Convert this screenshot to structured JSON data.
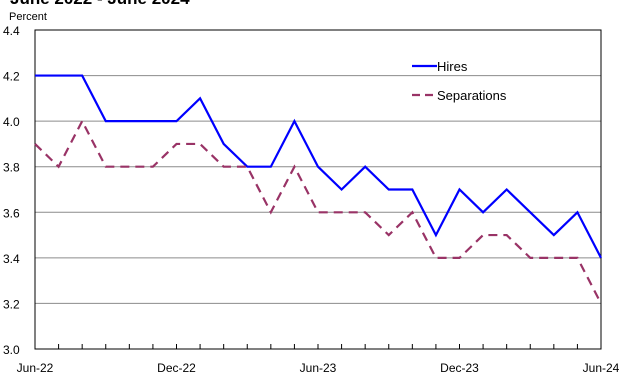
{
  "chart_data": {
    "type": "line",
    "title": "June 2022 - June 2024",
    "ylabel": "Percent",
    "xlabel": "",
    "ylim": [
      3.0,
      4.4
    ],
    "yticks": [
      "4.4",
      "4.2",
      "4.0",
      "3.8",
      "3.6",
      "3.4",
      "3.2",
      "3.0"
    ],
    "ytick_values": [
      4.4,
      4.2,
      4.0,
      3.8,
      3.6,
      3.4,
      3.2,
      3.0
    ],
    "x": [
      "2022-06",
      "2022-07",
      "2022-08",
      "2022-09",
      "2022-10",
      "2022-11",
      "2022-12",
      "2023-01",
      "2023-02",
      "2023-03",
      "2023-04",
      "2023-05",
      "2023-06",
      "2023-07",
      "2023-08",
      "2023-09",
      "2023-10",
      "2023-11",
      "2023-12",
      "2024-01",
      "2024-02",
      "2024-03",
      "2024-04",
      "2024-05",
      "2024-06"
    ],
    "xtick_labels": [
      {
        "index": 0,
        "label": "Jun-22"
      },
      {
        "index": 6,
        "label": "Dec-22"
      },
      {
        "index": 12,
        "label": "Jun-23"
      },
      {
        "index": 18,
        "label": "Dec-23"
      },
      {
        "index": 24,
        "label": "Jun-24"
      }
    ],
    "grid": true,
    "legend_position": "top-right",
    "series": [
      {
        "name": "Hires",
        "color": "#0000ff",
        "style": "solid",
        "values": [
          4.2,
          4.2,
          4.2,
          4.0,
          4.0,
          4.0,
          4.0,
          4.1,
          3.9,
          3.8,
          3.8,
          4.0,
          3.8,
          3.7,
          3.8,
          3.7,
          3.7,
          3.5,
          3.7,
          3.6,
          3.7,
          3.6,
          3.5,
          3.6,
          3.4
        ]
      },
      {
        "name": "Separations",
        "color": "#993366",
        "style": "dashed",
        "values": [
          3.9,
          3.8,
          4.0,
          3.8,
          3.8,
          3.8,
          3.9,
          3.9,
          3.8,
          3.8,
          3.6,
          3.8,
          3.6,
          3.6,
          3.6,
          3.5,
          3.6,
          3.4,
          3.4,
          3.5,
          3.5,
          3.4,
          3.4,
          3.4,
          3.2
        ]
      }
    ]
  }
}
